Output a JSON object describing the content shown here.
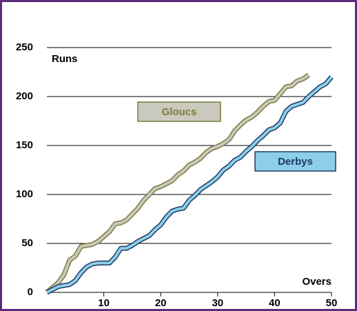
{
  "chart_data": {
    "type": "line",
    "x_label": "Overs",
    "y_label": "Runs",
    "x": [
      0,
      1,
      2,
      3,
      4,
      5,
      6,
      7,
      8,
      9,
      10,
      11,
      12,
      13,
      14,
      15,
      16,
      17,
      18,
      19,
      20,
      21,
      22,
      23,
      24,
      25,
      26,
      27,
      28,
      29,
      30,
      31,
      32,
      33,
      34,
      35,
      36,
      37,
      38,
      39,
      40,
      41,
      42,
      43,
      44,
      45,
      46,
      47,
      48,
      49,
      50
    ],
    "series": [
      {
        "name": "Gloucs",
        "color": "#c9c9bd",
        "outline": "#7c7a3c",
        "values": [
          0,
          5,
          10,
          18,
          33,
          37,
          47,
          48,
          49,
          52,
          57,
          62,
          70,
          71,
          74,
          80,
          86,
          94,
          100,
          106,
          108,
          111,
          114,
          120,
          124,
          130,
          133,
          137,
          143,
          147,
          149,
          152,
          156,
          165,
          171,
          176,
          179,
          184,
          190,
          195,
          196,
          203,
          210,
          211,
          216,
          218,
          222,
          null,
          null,
          null,
          null
        ]
      },
      {
        "name": "Derbys",
        "color": "#8dcfe8",
        "outline": "#1c3767",
        "values": [
          0,
          3,
          6,
          7,
          8,
          12,
          20,
          26,
          29,
          30,
          30,
          30,
          36,
          45,
          45,
          48,
          52,
          55,
          58,
          64,
          69,
          77,
          83,
          85,
          86,
          94,
          99,
          105,
          109,
          113,
          118,
          125,
          129,
          135,
          138,
          144,
          149,
          155,
          160,
          166,
          168,
          173,
          185,
          190,
          192,
          194,
          200,
          205,
          210,
          213,
          220
        ]
      }
    ],
    "xlim": [
      0,
      50
    ],
    "xticks": [
      10,
      20,
      30,
      40,
      50
    ],
    "ylim": [
      0,
      250
    ],
    "yticks": [
      0,
      50,
      100,
      150,
      200,
      250
    ],
    "grid": true
  }
}
